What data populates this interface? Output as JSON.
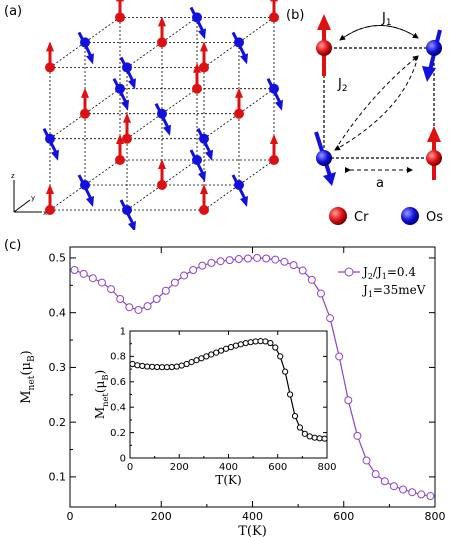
{
  "panels": {
    "a_label": "(a)",
    "b_label": "(b)",
    "c_label": "(c)"
  },
  "panel_a": {
    "axis_labels": {
      "z": "z",
      "y": "y",
      "x": "x"
    }
  },
  "panel_b": {
    "j1_label": "J",
    "j1_sub": "1",
    "j2_label": "J",
    "j2_sub": "2",
    "a_label": "a",
    "legend": [
      {
        "name": "Cr",
        "color": "#dd1111"
      },
      {
        "name": "Os",
        "color": "#1111dd"
      }
    ]
  },
  "colors": {
    "cr": "#dd1111",
    "os": "#1111dd",
    "main_series": "#8e44c8",
    "inset_series": "#000000"
  },
  "chart_data": [
    {
      "type": "line",
      "legend_entry": {
        "main": "J",
        "sub2": "2",
        "slash": "/J",
        "sub1": "1",
        "eq": "=0.4"
      },
      "legend_line2": {
        "main": "J",
        "sub1": "1",
        "eq": "=35meV"
      },
      "xlabel": "T(K)",
      "ylabel_main": "M",
      "ylabel_sub": "net",
      "ylabel_tail": "(μ",
      "ylabel_sub2": "B",
      "ylabel_end": ")",
      "xlim": [
        0,
        800
      ],
      "ylim": [
        0.045,
        0.52
      ],
      "xticks": [
        0,
        200,
        400,
        600,
        800
      ],
      "yticks": [
        0.1,
        0.2,
        0.3,
        0.4,
        0.5
      ],
      "xtick_labels": [
        "0",
        "200",
        "400",
        "600",
        "800"
      ],
      "ytick_labels": [
        "0.1",
        "0.2",
        "0.3",
        "0.4",
        "0.5"
      ],
      "series": [
        {
          "x": [
            10,
            30,
            50,
            70,
            90,
            110,
            130,
            150,
            170,
            190,
            210,
            230,
            250,
            270,
            290,
            310,
            330,
            350,
            370,
            390,
            410,
            430,
            450,
            470,
            490,
            510,
            530,
            550,
            570,
            590,
            610,
            630,
            650,
            670,
            690,
            710,
            730,
            750,
            770,
            790
          ],
          "y": [
            0.478,
            0.471,
            0.463,
            0.455,
            0.443,
            0.425,
            0.41,
            0.405,
            0.412,
            0.425,
            0.44,
            0.455,
            0.468,
            0.478,
            0.486,
            0.491,
            0.494,
            0.496,
            0.498,
            0.499,
            0.5,
            0.499,
            0.497,
            0.493,
            0.487,
            0.477,
            0.46,
            0.435,
            0.39,
            0.32,
            0.24,
            0.175,
            0.13,
            0.105,
            0.092,
            0.083,
            0.077,
            0.072,
            0.068,
            0.065
          ]
        }
      ]
    },
    {
      "type": "line",
      "xlabel": "T(K)",
      "ylabel_main": "M",
      "ylabel_sub": "net",
      "ylabel_tail": "(μ",
      "ylabel_sub2": "B",
      "ylabel_end": ")",
      "xlim": [
        0,
        800
      ],
      "ylim": [
        0,
        1
      ],
      "xticks": [
        0,
        200,
        400,
        600,
        800
      ],
      "yticks": [
        0,
        0.2,
        0.4,
        0.6,
        0.8,
        1
      ],
      "xtick_labels": [
        "0",
        "200",
        "400",
        "600",
        "800"
      ],
      "ytick_labels": [
        "0",
        "0.2",
        "0.4",
        "0.6",
        "0.8",
        "1"
      ],
      "series": [
        {
          "x": [
            10,
            30,
            50,
            70,
            90,
            110,
            130,
            150,
            170,
            190,
            210,
            230,
            250,
            270,
            290,
            310,
            330,
            350,
            370,
            390,
            410,
            430,
            450,
            470,
            490,
            510,
            530,
            550,
            570,
            590,
            610,
            630,
            650,
            670,
            690,
            710,
            730,
            750,
            770,
            790
          ],
          "y": [
            0.74,
            0.73,
            0.725,
            0.72,
            0.718,
            0.716,
            0.715,
            0.715,
            0.716,
            0.72,
            0.728,
            0.74,
            0.755,
            0.77,
            0.785,
            0.8,
            0.815,
            0.83,
            0.845,
            0.86,
            0.873,
            0.885,
            0.895,
            0.905,
            0.912,
            0.918,
            0.92,
            0.918,
            0.905,
            0.87,
            0.8,
            0.68,
            0.5,
            0.33,
            0.24,
            0.19,
            0.17,
            0.16,
            0.155,
            0.152
          ]
        }
      ]
    }
  ]
}
